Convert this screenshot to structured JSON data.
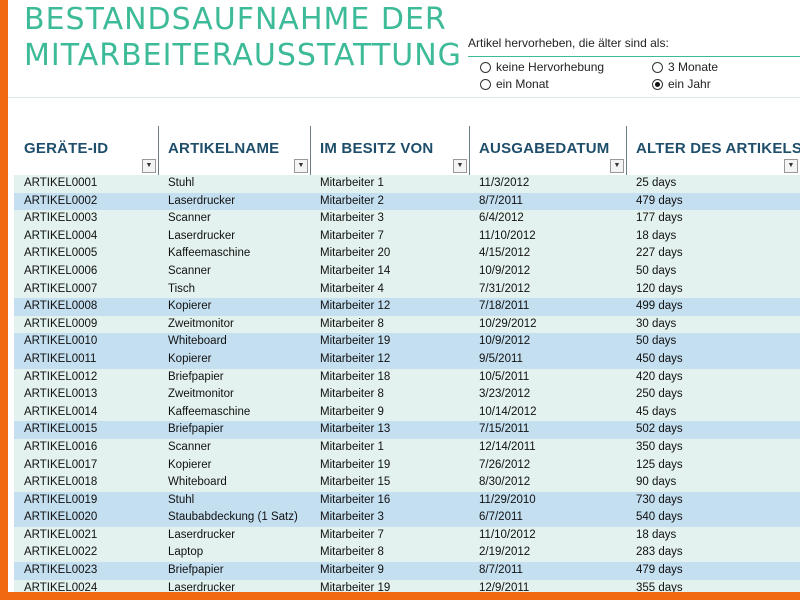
{
  "title": {
    "line1": "BESTANDSAUFNAHME DER",
    "line2": "MITARBEITERAUSSTATTUNG"
  },
  "highlight": {
    "label": "Artikel hervorheben, die älter sind als:",
    "options": [
      {
        "label": "keine Hervorhebung",
        "selected": false
      },
      {
        "label": "3 Monate",
        "selected": false
      },
      {
        "label": "ein Monat",
        "selected": false
      },
      {
        "label": "ein Jahr",
        "selected": true
      }
    ]
  },
  "table": {
    "columns": [
      "GERÄTE-ID",
      "ARTIKELNAME",
      "IM BESITZ VON",
      "AUSGABEDATUM",
      "ALTER DES ARTIKELS"
    ],
    "rows": [
      [
        "ARTIKEL0001",
        "Stuhl",
        "Mitarbeiter 1",
        "11/3/2012",
        "25 days"
      ],
      [
        "ARTIKEL0002",
        "Laserdrucker",
        "Mitarbeiter 2",
        "8/7/2011",
        "479 days"
      ],
      [
        "ARTIKEL0003",
        "Scanner",
        "Mitarbeiter 3",
        "6/4/2012",
        "177 days"
      ],
      [
        "ARTIKEL0004",
        "Laserdrucker",
        "Mitarbeiter 7",
        "11/10/2012",
        "18 days"
      ],
      [
        "ARTIKEL0005",
        "Kaffeemaschine",
        "Mitarbeiter 20",
        "4/15/2012",
        "227 days"
      ],
      [
        "ARTIKEL0006",
        "Scanner",
        "Mitarbeiter 14",
        "10/9/2012",
        "50 days"
      ],
      [
        "ARTIKEL0007",
        "Tisch",
        "Mitarbeiter 4",
        "7/31/2012",
        "120 days"
      ],
      [
        "ARTIKEL0008",
        "Kopierer",
        "Mitarbeiter 12",
        "7/18/2011",
        "499 days"
      ],
      [
        "ARTIKEL0009",
        "Zweitmonitor",
        "Mitarbeiter 8",
        "10/29/2012",
        "30 days"
      ],
      [
        "ARTIKEL0010",
        "Whiteboard",
        "Mitarbeiter 19",
        "10/9/2012",
        "50 days"
      ],
      [
        "ARTIKEL0011",
        "Kopierer",
        "Mitarbeiter 12",
        "9/5/2011",
        "450 days"
      ],
      [
        "ARTIKEL0012",
        "Briefpapier",
        "Mitarbeiter 18",
        "10/5/2011",
        "420 days"
      ],
      [
        "ARTIKEL0013",
        "Zweitmonitor",
        "Mitarbeiter 8",
        "3/23/2012",
        "250 days"
      ],
      [
        "ARTIKEL0014",
        "Kaffeemaschine",
        "Mitarbeiter 9",
        "10/14/2012",
        "45 days"
      ],
      [
        "ARTIKEL0015",
        "Briefpapier",
        "Mitarbeiter 13",
        "7/15/2011",
        "502 days"
      ],
      [
        "ARTIKEL0016",
        "Scanner",
        "Mitarbeiter 1",
        "12/14/2011",
        "350 days"
      ],
      [
        "ARTIKEL0017",
        "Kopierer",
        "Mitarbeiter 19",
        "7/26/2012",
        "125 days"
      ],
      [
        "ARTIKEL0018",
        "Whiteboard",
        "Mitarbeiter 15",
        "8/30/2012",
        "90 days"
      ],
      [
        "ARTIKEL0019",
        "Stuhl",
        "Mitarbeiter 16",
        "11/29/2010",
        "730 days"
      ],
      [
        "ARTIKEL0020",
        "Staubabdeckung (1 Satz)",
        "Mitarbeiter 3",
        "6/7/2011",
        "540 days"
      ],
      [
        "ARTIKEL0021",
        "Laserdrucker",
        "Mitarbeiter 7",
        "11/10/2012",
        "18 days"
      ],
      [
        "ARTIKEL0022",
        "Laptop",
        "Mitarbeiter 8",
        "2/19/2012",
        "283 days"
      ],
      [
        "ARTIKEL0023",
        "Briefpapier",
        "Mitarbeiter 9",
        "8/7/2011",
        "479 days"
      ],
      [
        "ARTIKEL0024",
        "Laserdrucker",
        "Mitarbeiter 19",
        "12/9/2011",
        "355 days"
      ]
    ]
  },
  "colors": {
    "title": "#3dbb98",
    "header_text": "#1f4e6b",
    "row_light": "#e3f2ee",
    "row_highlight": "#c4dff0",
    "frame": "#f26a10"
  }
}
